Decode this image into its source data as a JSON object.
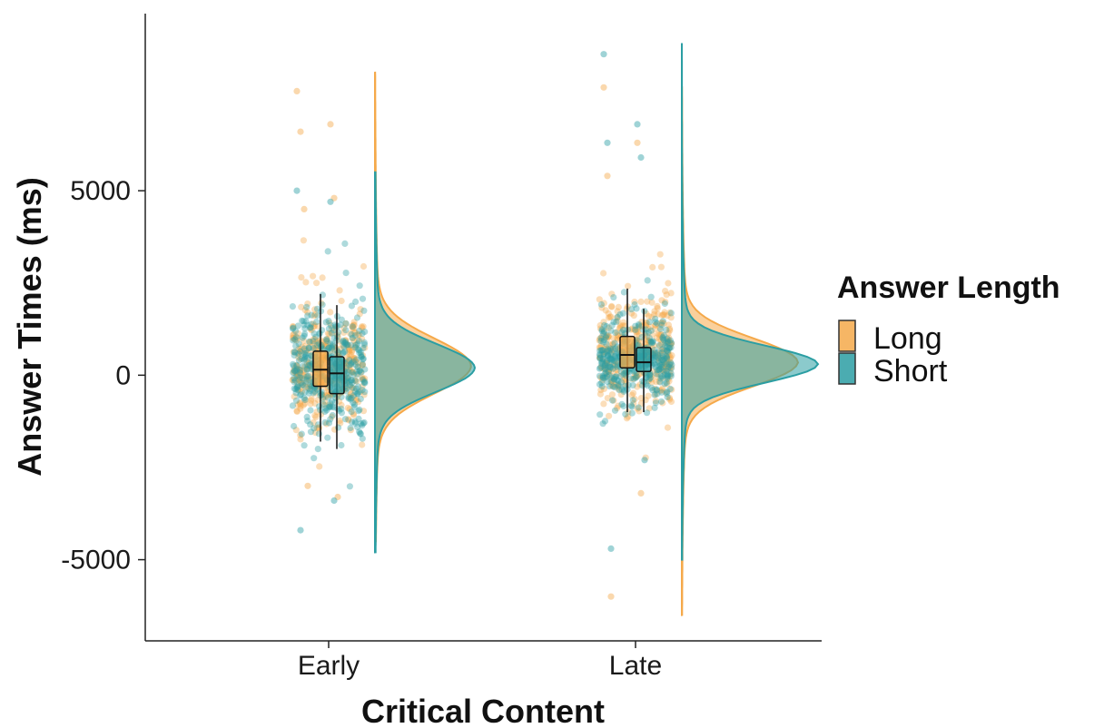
{
  "colors": {
    "long": "#F5A94A",
    "short": "#2B9EA3",
    "overlap": "#5E8F5E",
    "axis": "#222222"
  },
  "chart_data": {
    "type": "raincloud",
    "title": "",
    "xlabel": "Critical Content",
    "ylabel": "Answer Times (ms)",
    "categories": [
      "Early",
      "Late"
    ],
    "ylim": [
      -7200,
      9800
    ],
    "yticks": [
      -5000,
      0,
      5000
    ],
    "ytick_labels": [
      "-5000",
      "0",
      "5000"
    ],
    "legend": {
      "title": "Answer Length",
      "position": "right",
      "entries": [
        "Long",
        "Short"
      ]
    },
    "series": [
      {
        "name": "Long",
        "boxplots": [
          {
            "category": "Early",
            "min": -1800,
            "q1": -300,
            "median": 150,
            "q3": 650,
            "max": 2200
          },
          {
            "category": "Late",
            "min": -1000,
            "q1": 200,
            "median": 550,
            "q3": 1050,
            "max": 2350
          }
        ],
        "density": [
          {
            "category": "Early",
            "ymin": -4500,
            "ymax": 8200,
            "peak_y": 250,
            "sd": 750
          },
          {
            "category": "Late",
            "ymin": -6500,
            "ymax": 7800,
            "peak_y": 350,
            "sd": 650
          }
        ],
        "outliers": [
          {
            "category": "Early",
            "values": [
              7700,
              6800,
              6600,
              4800,
              4500,
              -3300,
              -3000
            ]
          },
          {
            "category": "Late",
            "values": [
              7800,
              6300,
              5400,
              -3200,
              -6000
            ]
          }
        ]
      },
      {
        "name": "Short",
        "boxplots": [
          {
            "category": "Early",
            "min": -2000,
            "q1": -500,
            "median": 50,
            "q3": 500,
            "max": 1900
          },
          {
            "category": "Late",
            "min": -1000,
            "q1": 100,
            "median": 350,
            "q3": 750,
            "max": 1800
          }
        ],
        "density": [
          {
            "category": "Early",
            "ymin": -4800,
            "ymax": 5500,
            "peak_y": 200,
            "sd": 650
          },
          {
            "category": "Late",
            "ymin": -5000,
            "ymax": 9000,
            "peak_y": 300,
            "sd": 500
          }
        ],
        "outliers": [
          {
            "category": "Early",
            "values": [
              5000,
              4700,
              -4200,
              -3400
            ]
          },
          {
            "category": "Late",
            "values": [
              8700,
              6800,
              6300,
              5900,
              -4700,
              -2300
            ]
          }
        ]
      }
    ],
    "grid": false
  }
}
